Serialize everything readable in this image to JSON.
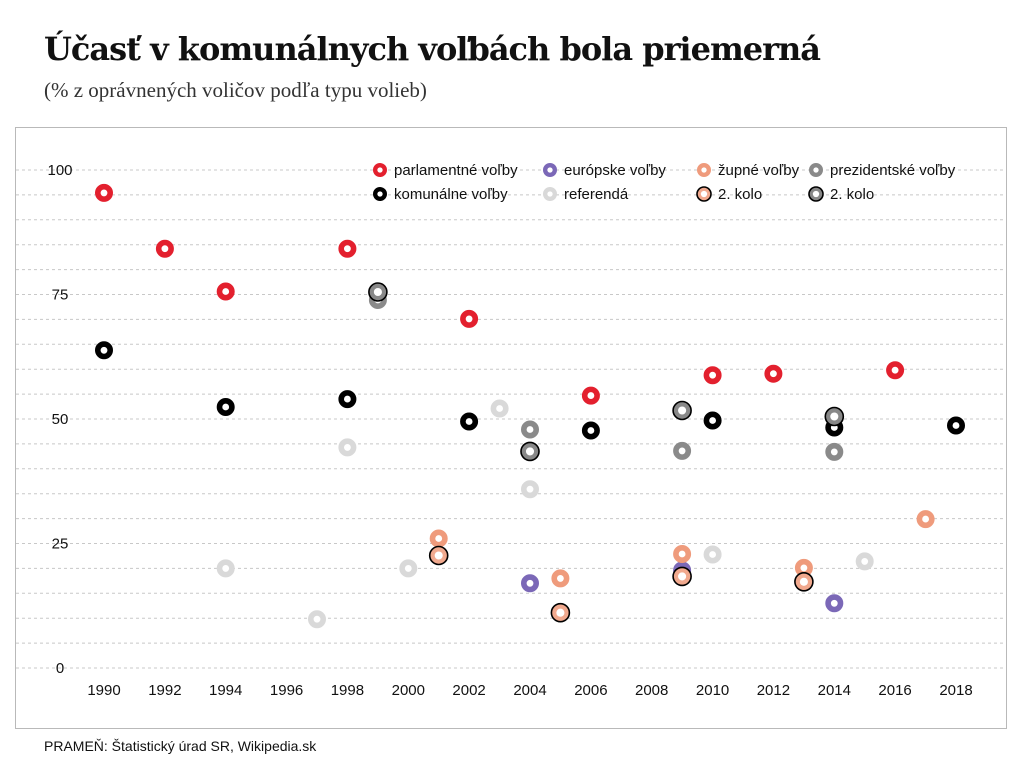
{
  "header": {
    "title": "Účasť v komunálnych voľbách bola priemerná",
    "subtitle": "(% z oprávnených voličov podľa typu volieb)"
  },
  "footer": {
    "source": "PRAMEŇ: Štatistický úrad SR, Wikipedia.sk"
  },
  "colors": {
    "parlamentne": "#e3202e",
    "europske": "#7b68b7",
    "zupne": "#ef9b7c",
    "prezidentske": "#8a8a8a",
    "komunalne": "#000000",
    "referenda": "#d9d9d9",
    "kolo2_fill": "#f1a98e",
    "prez_kolo2_fill": "#888888",
    "grid": "#c8c8c8"
  },
  "chart_data": {
    "type": "scatter",
    "title": "Účasť v komunálnych voľbách bola priemerná",
    "subtitle": "(% z oprávnených voličov podľa typu volieb)",
    "xlabel": "",
    "ylabel": "",
    "xlim": [
      1989,
      2019
    ],
    "ylim": [
      0,
      100
    ],
    "x_ticks": [
      1990,
      1992,
      1994,
      1996,
      1998,
      2000,
      2002,
      2004,
      2006,
      2008,
      2010,
      2012,
      2014,
      2016,
      2018
    ],
    "y_ticks": [
      0,
      25,
      50,
      75,
      100
    ],
    "grid": true,
    "legend_position": "top-right",
    "series": [
      {
        "key": "parlamentne",
        "name": "parlamentné voľby",
        "color": "#e3202e",
        "style": "ring",
        "points": [
          [
            1990,
            95.4
          ],
          [
            1992,
            84.2
          ],
          [
            1994,
            75.6
          ],
          [
            1998,
            84.2
          ],
          [
            2002,
            70.1
          ],
          [
            2006,
            54.7
          ],
          [
            2010,
            58.8
          ],
          [
            2012,
            59.1
          ],
          [
            2016,
            59.8
          ]
        ]
      },
      {
        "key": "europske",
        "name": "európske voľby",
        "color": "#7b68b7",
        "style": "ring",
        "points": [
          [
            2004,
            17.0
          ],
          [
            2009,
            19.6
          ],
          [
            2014,
            13.0
          ]
        ]
      },
      {
        "key": "zupne",
        "name": "župné voľby",
        "color": "#ef9b7c",
        "style": "ring",
        "points": [
          [
            2001,
            26.0
          ],
          [
            2005,
            18.0
          ],
          [
            2009,
            22.9
          ],
          [
            2013,
            20.1
          ],
          [
            2017,
            29.9
          ]
        ]
      },
      {
        "key": "prezidentske",
        "name": "prezidentské voľby",
        "color": "#8a8a8a",
        "style": "ring",
        "points": [
          [
            1999,
            73.9
          ],
          [
            2004,
            47.9
          ],
          [
            2009,
            43.6
          ],
          [
            2014,
            43.4
          ]
        ]
      },
      {
        "key": "komunalne",
        "name": "komunálne voľby",
        "color": "#000000",
        "style": "ring",
        "points": [
          [
            1990,
            63.8
          ],
          [
            1994,
            52.4
          ],
          [
            1998,
            54.0
          ],
          [
            2002,
            49.5
          ],
          [
            2006,
            47.7
          ],
          [
            2010,
            49.7
          ],
          [
            2014,
            48.3
          ],
          [
            2018,
            48.7
          ]
        ]
      },
      {
        "key": "referenda",
        "name": "referendá",
        "color": "#d9d9d9",
        "style": "ring",
        "points": [
          [
            1994,
            20.0
          ],
          [
            1997,
            9.8
          ],
          [
            1998,
            44.3
          ],
          [
            2000,
            20.0
          ],
          [
            2003,
            52.1
          ],
          [
            2004,
            35.9
          ],
          [
            2010,
            22.8
          ],
          [
            2015,
            21.4
          ]
        ]
      },
      {
        "key": "zupne_kolo2",
        "name": "2. kolo",
        "color": "#000000",
        "fill": "#f1a98e",
        "style": "round2",
        "points": [
          [
            2001,
            22.6
          ],
          [
            2005,
            11.1
          ],
          [
            2009,
            18.4
          ],
          [
            2013,
            17.3
          ]
        ]
      },
      {
        "key": "prezidentske_kolo2",
        "name": "2. kolo",
        "color": "#000000",
        "fill": "#888888",
        "style": "round2",
        "points": [
          [
            1999,
            75.5
          ],
          [
            2004,
            43.5
          ],
          [
            2009,
            51.7
          ],
          [
            2014,
            50.5
          ]
        ]
      }
    ],
    "legend": {
      "rows": [
        [
          "parlamentne",
          "europske",
          "zupne",
          "prezidentske"
        ],
        [
          "komunalne",
          "referenda",
          "zupne_kolo2",
          "prezidentske_kolo2"
        ]
      ]
    }
  }
}
